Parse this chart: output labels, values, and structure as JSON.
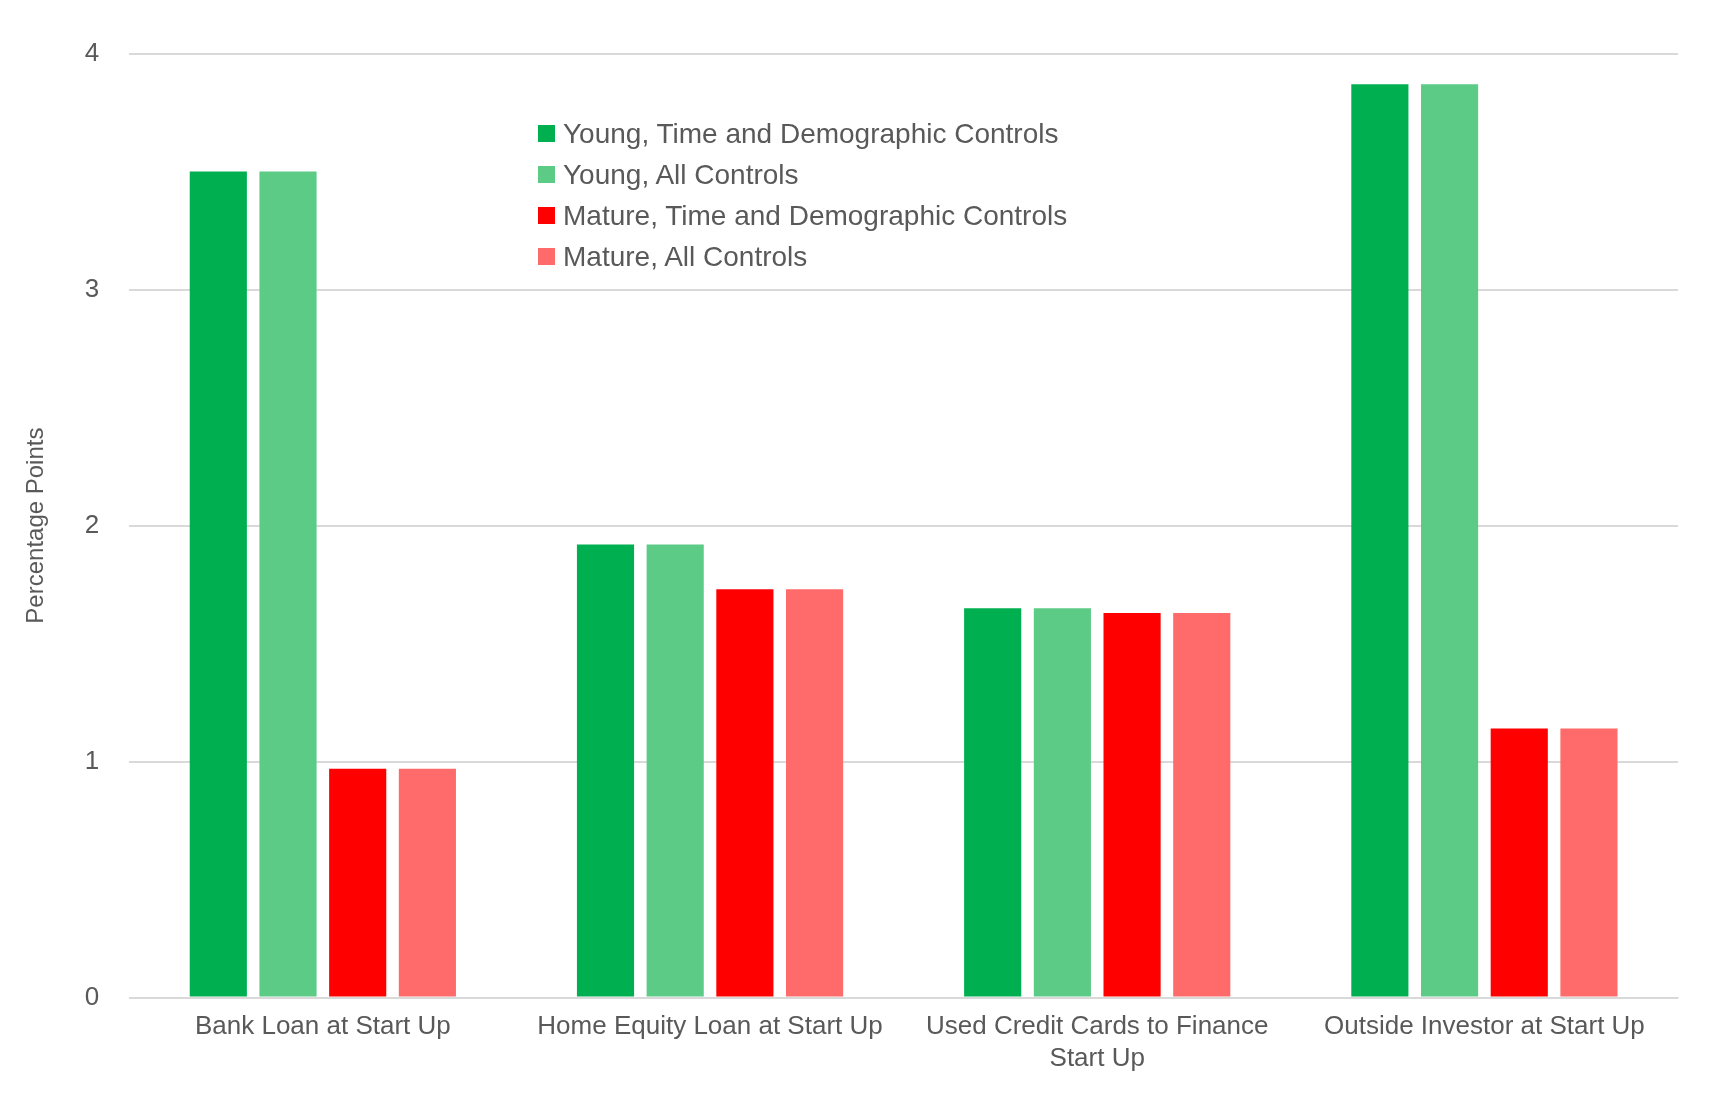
{
  "chart_data": {
    "type": "bar",
    "ylabel": "Percentage Points",
    "categories": [
      "Bank Loan at Start Up",
      "Home Equity Loan at Start Up",
      "Used Credit Cards to Finance Start Up",
      "Outside Investor at Start Up"
    ],
    "series": [
      {
        "name": "Young, Time and Demographic Controls",
        "color": "#00b050",
        "values": [
          3.5,
          1.92,
          1.65,
          3.87
        ]
      },
      {
        "name": "Young, All Controls",
        "color": "#5ccb86",
        "values": [
          3.5,
          1.92,
          1.65,
          3.87
        ]
      },
      {
        "name": "Mature, Time and Demographic Controls",
        "color": "#ff0000",
        "values": [
          0.97,
          1.73,
          1.63,
          1.14
        ]
      },
      {
        "name": "Mature, All Controls",
        "color": "#ff6b6b",
        "values": [
          0.97,
          1.73,
          1.63,
          1.14
        ]
      }
    ],
    "ylim": [
      0,
      4
    ],
    "yticks": [
      0,
      1,
      2,
      3,
      4
    ],
    "grid": "y",
    "legend": "top left"
  }
}
